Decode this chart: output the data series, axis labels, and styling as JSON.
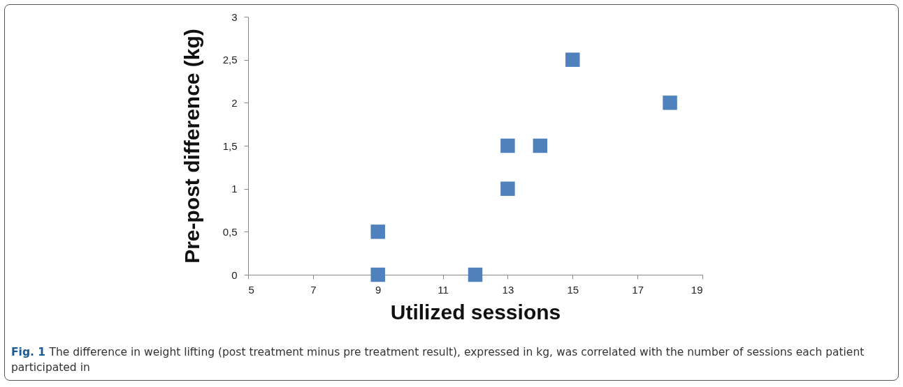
{
  "chart_data": {
    "type": "scatter",
    "xlabel": "Utilized sessions",
    "ylabel": "Pre-post difference (kg)",
    "x": [
      9,
      9,
      12,
      13,
      13,
      14,
      15,
      18
    ],
    "series": [
      {
        "color": "#4f81bd",
        "values": [
          0.5,
          0,
          0,
          1.5,
          1,
          1.5,
          2.5,
          2
        ]
      }
    ],
    "xlim": [
      5,
      19
    ],
    "xticks": [
      5,
      7,
      9,
      11,
      13,
      15,
      17,
      19
    ],
    "ylim": [
      0,
      3
    ],
    "yticks": [
      0,
      {
        "value": 0.5,
        "label": "0,5"
      },
      1,
      {
        "value": 1.5,
        "label": "1,5"
      },
      2,
      {
        "value": 2.5,
        "label": "2,5"
      },
      3
    ],
    "marker": "square",
    "grid": false,
    "legend": false,
    "annotations": [
      "Fig. 1",
      "The difference in weight lifting (post treatment minus pre treatment result), expressed in kg, was correlated with the number of sessions each patient participated in"
    ]
  }
}
